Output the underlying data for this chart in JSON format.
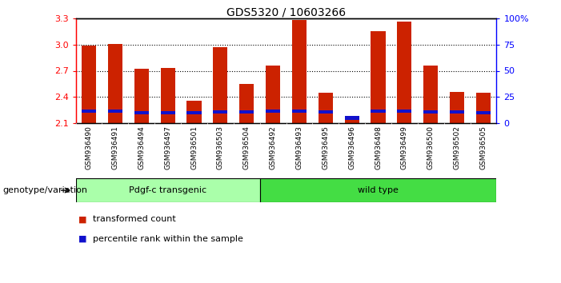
{
  "title": "GDS5320 / 10603266",
  "categories": [
    "GSM936490",
    "GSM936491",
    "GSM936494",
    "GSM936497",
    "GSM936501",
    "GSM936503",
    "GSM936504",
    "GSM936492",
    "GSM936493",
    "GSM936495",
    "GSM936496",
    "GSM936498",
    "GSM936499",
    "GSM936500",
    "GSM936502",
    "GSM936505"
  ],
  "red_values": [
    2.99,
    3.01,
    2.72,
    2.73,
    2.36,
    2.97,
    2.55,
    2.76,
    3.28,
    2.45,
    2.15,
    3.15,
    3.26,
    2.76,
    2.46,
    2.45
  ],
  "blue_bottom": [
    2.22,
    2.22,
    2.2,
    2.2,
    2.2,
    2.21,
    2.21,
    2.22,
    2.22,
    2.21,
    2.14,
    2.22,
    2.22,
    2.21,
    2.21,
    2.2
  ],
  "blue_height": [
    0.04,
    0.04,
    0.04,
    0.04,
    0.04,
    0.04,
    0.04,
    0.04,
    0.04,
    0.04,
    0.04,
    0.04,
    0.04,
    0.04,
    0.04,
    0.04
  ],
  "ylim_left": [
    2.1,
    3.3
  ],
  "ylim_right": [
    0,
    100
  ],
  "yticks_left": [
    2.1,
    2.4,
    2.7,
    3.0,
    3.3
  ],
  "yticks_right": [
    0,
    25,
    50,
    75,
    100
  ],
  "ytick_labels_right": [
    "0",
    "25",
    "50",
    "75",
    "100%"
  ],
  "bar_color_red": "#CC2200",
  "bar_color_blue": "#1111CC",
  "group1_label": "Pdgf-c transgenic",
  "group2_label": "wild type",
  "group1_color": "#AAFFAA",
  "group2_color": "#44DD44",
  "group1_count": 7,
  "group2_count": 9,
  "genotype_label": "genotype/variation",
  "legend_items": [
    "transformed count",
    "percentile rank within the sample"
  ],
  "bar_width": 0.55,
  "tick_area_bg": "#C8C8C8",
  "plot_bg": "#FFFFFF",
  "base_value": 2.1
}
